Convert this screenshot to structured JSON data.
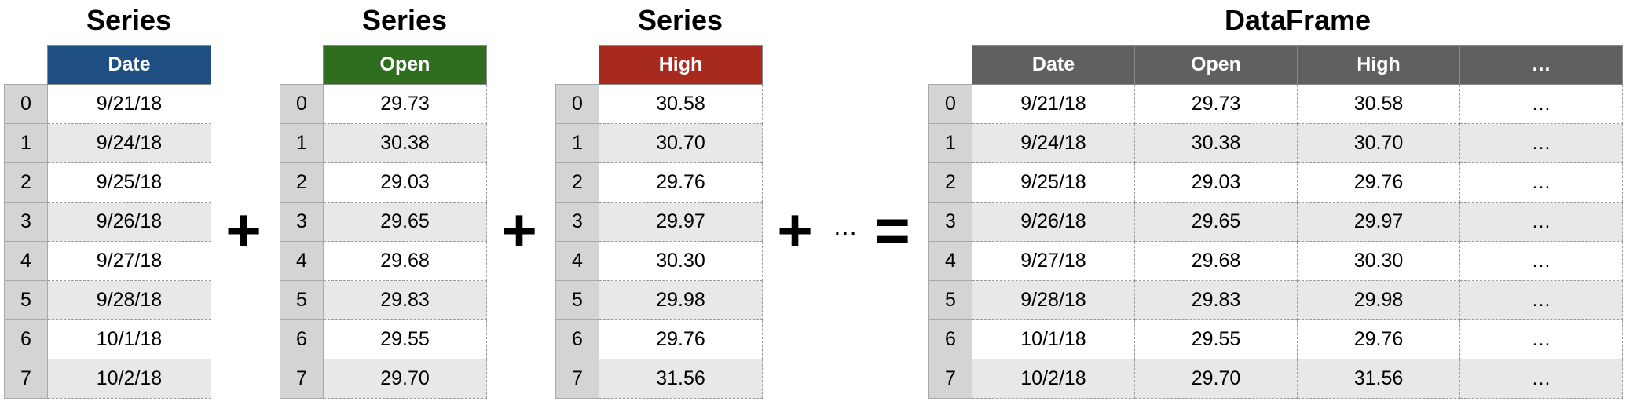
{
  "index": [
    "0",
    "1",
    "2",
    "3",
    "4",
    "5",
    "6",
    "7"
  ],
  "series_date": {
    "title": "Series",
    "header": "Date",
    "color": "#1f4e82",
    "values": [
      "9/21/18",
      "9/24/18",
      "9/25/18",
      "9/26/18",
      "9/27/18",
      "9/28/18",
      "10/1/18",
      "10/2/18"
    ]
  },
  "series_open": {
    "title": "Series",
    "header": "Open",
    "color": "#2e6e1e",
    "values": [
      "29.73",
      "30.38",
      "29.03",
      "29.65",
      "29.68",
      "29.83",
      "29.55",
      "29.70"
    ]
  },
  "series_high": {
    "title": "Series",
    "header": "High",
    "color": "#a8291d",
    "values": [
      "30.58",
      "30.70",
      "29.76",
      "29.97",
      "30.30",
      "29.98",
      "29.76",
      "31.56"
    ]
  },
  "dataframe": {
    "title": "DataFrame",
    "header_color": "#606060",
    "columns": [
      "Date",
      "Open",
      "High",
      "…"
    ],
    "rows": [
      [
        "9/21/18",
        "29.73",
        "30.58",
        "…"
      ],
      [
        "9/24/18",
        "30.38",
        "30.70",
        "…"
      ],
      [
        "9/25/18",
        "29.03",
        "29.76",
        "…"
      ],
      [
        "9/26/18",
        "29.65",
        "29.97",
        "…"
      ],
      [
        "9/27/18",
        "29.68",
        "30.30",
        "…"
      ],
      [
        "9/28/18",
        "29.83",
        "29.98",
        "…"
      ],
      [
        "10/1/18",
        "29.55",
        "29.76",
        "…"
      ],
      [
        "10/2/18",
        "29.70",
        "31.56",
        "…"
      ]
    ]
  },
  "operators": {
    "plus": "+",
    "ellipsis": "…",
    "equals": "="
  }
}
